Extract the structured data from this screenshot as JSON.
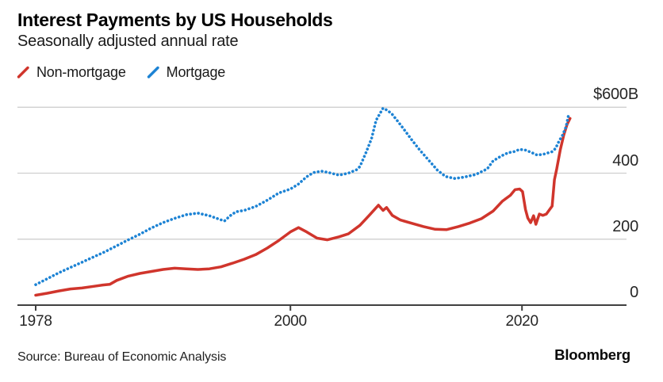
{
  "header": {
    "title": "Interest Payments by US Households",
    "subtitle": "Seasonally adjusted annual rate"
  },
  "legend": [
    {
      "label": "Non-mortgage",
      "color": "#d0352c",
      "style": "solid"
    },
    {
      "label": "Mortgage",
      "color": "#1d83d4",
      "style": "dotted"
    }
  ],
  "footer": {
    "source": "Source: Bureau of Economic Analysis",
    "brand": "Bloomberg"
  },
  "colors": {
    "non_mortgage": "#d0352c",
    "mortgage": "#1d83d4",
    "gridline": "#cfcfcf",
    "axis": "#404040",
    "background": "#ffffff"
  },
  "chart_data": {
    "type": "line",
    "title": "Interest Payments by US Households",
    "subtitle": "Seasonally adjusted annual rate",
    "unit": "billions of US dollars, seasonally adjusted annual rate",
    "grid": "horizontal",
    "legend_position": "top-left",
    "x_axis": {
      "range": [
        1976.5,
        2025.2
      ],
      "ticks": [
        {
          "label": "1978",
          "year": 1978
        },
        {
          "label": "2000",
          "year": 2000
        },
        {
          "label": "2020",
          "year": 2020
        }
      ]
    },
    "y_axis": {
      "range": [
        0,
        620
      ],
      "side": "right",
      "ticks": [
        {
          "label": "$600B",
          "value": 600
        },
        {
          "label": "400",
          "value": 400
        },
        {
          "label": "200",
          "value": 200
        },
        {
          "label": "0",
          "value": 0
        }
      ]
    },
    "series": [
      {
        "name": "Non-mortgage",
        "color": "#d0352c",
        "line_style": "solid",
        "points": [
          [
            1978,
            30
          ],
          [
            1979,
            36
          ],
          [
            1980,
            43
          ],
          [
            1981,
            49
          ],
          [
            1982,
            52
          ],
          [
            1983,
            57
          ],
          [
            1983.8,
            61
          ],
          [
            1984.4,
            63
          ],
          [
            1985,
            75
          ],
          [
            1986,
            88
          ],
          [
            1987,
            96
          ],
          [
            1988,
            102
          ],
          [
            1989,
            108
          ],
          [
            1990,
            112
          ],
          [
            1991,
            110
          ],
          [
            1992,
            108
          ],
          [
            1993,
            110
          ],
          [
            1994,
            116
          ],
          [
            1995,
            127
          ],
          [
            1996,
            139
          ],
          [
            1997,
            153
          ],
          [
            1998,
            173
          ],
          [
            1999,
            196
          ],
          [
            2000,
            222
          ],
          [
            2000.7,
            235
          ],
          [
            2001.4,
            222
          ],
          [
            2002.3,
            203
          ],
          [
            2003.2,
            198
          ],
          [
            2004.2,
            207
          ],
          [
            2005,
            216
          ],
          [
            2006,
            242
          ],
          [
            2006.8,
            272
          ],
          [
            2007.4,
            295
          ],
          [
            2007.6,
            303
          ],
          [
            2008,
            287
          ],
          [
            2008.3,
            296
          ],
          [
            2008.8,
            272
          ],
          [
            2009.5,
            258
          ],
          [
            2010.5,
            248
          ],
          [
            2011.5,
            238
          ],
          [
            2012.5,
            230
          ],
          [
            2013.5,
            229
          ],
          [
            2014.5,
            238
          ],
          [
            2015.5,
            249
          ],
          [
            2016.5,
            262
          ],
          [
            2017.5,
            285
          ],
          [
            2018.3,
            315
          ],
          [
            2019,
            333
          ],
          [
            2019.4,
            350
          ],
          [
            2019.8,
            352
          ],
          [
            2020.05,
            344
          ],
          [
            2020.3,
            290
          ],
          [
            2020.5,
            264
          ],
          [
            2020.75,
            250
          ],
          [
            2021.0,
            271
          ],
          [
            2021.2,
            245
          ],
          [
            2021.5,
            276
          ],
          [
            2021.8,
            272
          ],
          [
            2022.1,
            276
          ],
          [
            2022.35,
            288
          ],
          [
            2022.6,
            300
          ],
          [
            2022.8,
            380
          ],
          [
            2023.0,
            413
          ],
          [
            2023.3,
            470
          ],
          [
            2023.6,
            515
          ],
          [
            2023.9,
            548
          ],
          [
            2024.15,
            566
          ]
        ]
      },
      {
        "name": "Mortgage",
        "color": "#1d83d4",
        "line_style": "dotted",
        "points": [
          [
            1978,
            62
          ],
          [
            1979,
            80
          ],
          [
            1980,
            98
          ],
          [
            1981,
            114
          ],
          [
            1982,
            130
          ],
          [
            1983,
            146
          ],
          [
            1984,
            162
          ],
          [
            1985,
            180
          ],
          [
            1986,
            198
          ],
          [
            1987,
            215
          ],
          [
            1988,
            234
          ],
          [
            1989,
            250
          ],
          [
            1990,
            263
          ],
          [
            1991,
            274
          ],
          [
            1992,
            279
          ],
          [
            1993,
            271
          ],
          [
            1994.3,
            255
          ],
          [
            1994.8,
            271
          ],
          [
            1995.3,
            283
          ],
          [
            1996,
            287
          ],
          [
            1997,
            299
          ],
          [
            1998,
            318
          ],
          [
            1999,
            340
          ],
          [
            2000,
            352
          ],
          [
            2000.7,
            367
          ],
          [
            2001.4,
            389
          ],
          [
            2002,
            402
          ],
          [
            2002.7,
            406
          ],
          [
            2003.3,
            402
          ],
          [
            2004.2,
            394
          ],
          [
            2005,
            400
          ],
          [
            2005.7,
            410
          ],
          [
            2006,
            420
          ],
          [
            2006.5,
            460
          ],
          [
            2007,
            504
          ],
          [
            2007.4,
            560
          ],
          [
            2007.8,
            585
          ],
          [
            2008,
            597
          ],
          [
            2008.4,
            590
          ],
          [
            2008.8,
            578
          ],
          [
            2009.3,
            556
          ],
          [
            2009.8,
            533
          ],
          [
            2010.5,
            500
          ],
          [
            2011.2,
            469
          ],
          [
            2012,
            437
          ],
          [
            2012.7,
            409
          ],
          [
            2013.4,
            390
          ],
          [
            2014.2,
            384
          ],
          [
            2015,
            388
          ],
          [
            2016,
            396
          ],
          [
            2017,
            413
          ],
          [
            2017.5,
            437
          ],
          [
            2018.2,
            452
          ],
          [
            2018.8,
            462
          ],
          [
            2019.3,
            465
          ],
          [
            2019.8,
            472
          ],
          [
            2020.3,
            470
          ],
          [
            2020.8,
            463
          ],
          [
            2021.3,
            455
          ],
          [
            2021.8,
            457
          ],
          [
            2022.2,
            461
          ],
          [
            2022.6,
            465
          ],
          [
            2022.9,
            475
          ],
          [
            2023.2,
            497
          ],
          [
            2023.5,
            515
          ],
          [
            2023.8,
            540
          ],
          [
            2024.05,
            581
          ]
        ]
      }
    ]
  }
}
